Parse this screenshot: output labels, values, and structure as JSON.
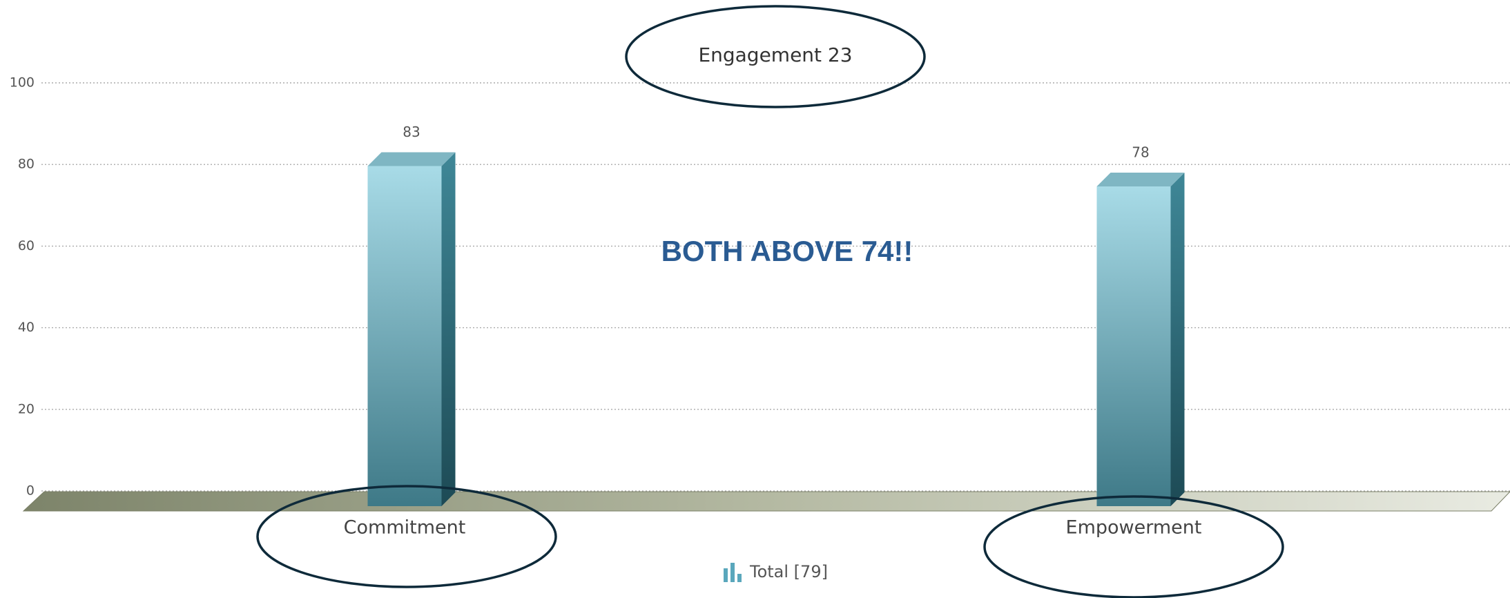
{
  "chart_data": {
    "type": "bar",
    "title": "Engagement 23",
    "annotation": "BOTH ABOVE 74!!",
    "categories": [
      "Commitment",
      "Empowerment"
    ],
    "series": [
      {
        "name": "Total [79]",
        "color": "#5d9aa8",
        "values": [
          83,
          78
        ]
      }
    ],
    "ylim": [
      0,
      100
    ],
    "yticks": [
      0,
      20,
      40,
      60,
      80,
      100
    ],
    "grid": true
  }
}
